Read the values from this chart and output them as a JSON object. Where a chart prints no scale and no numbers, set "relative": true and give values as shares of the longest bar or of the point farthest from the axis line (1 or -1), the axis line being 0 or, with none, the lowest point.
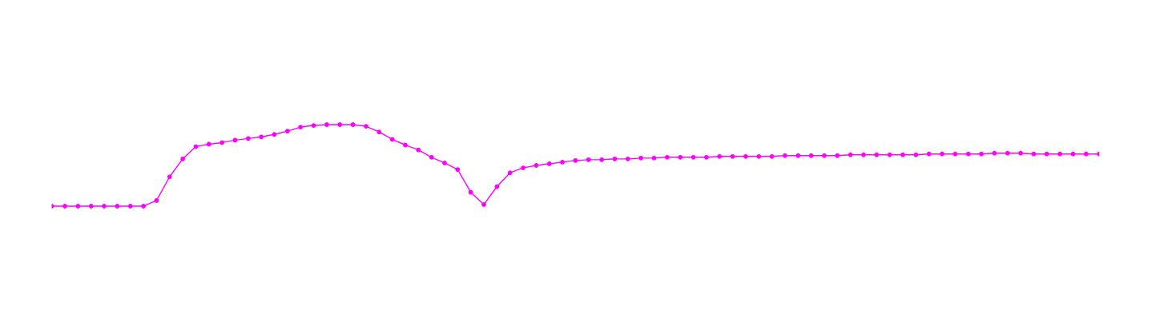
{
  "chart_data": {
    "type": "line",
    "relative": true,
    "marker": "circle",
    "line_style": "solid",
    "categories": [
      null,
      null,
      null,
      null,
      null,
      null,
      null,
      null,
      null,
      null,
      null,
      null,
      null,
      null,
      null,
      null,
      null,
      null,
      null,
      null,
      null,
      null,
      null,
      null,
      null,
      null,
      null,
      null,
      null,
      null,
      null,
      null,
      null,
      null,
      null,
      null,
      null,
      null,
      null,
      null,
      null,
      null,
      null,
      null,
      null,
      null,
      null,
      null,
      null,
      null,
      null,
      null,
      null,
      null,
      null,
      null,
      null,
      null,
      null,
      null,
      null,
      null,
      null,
      null,
      null,
      null,
      null,
      null,
      null,
      null,
      null,
      null,
      null,
      null,
      null,
      null,
      null,
      null,
      null,
      null,
      null
    ],
    "series": [
      {
        "color": "#ff00ff",
        "values": [
          0,
          0,
          0,
          0,
          0,
          0,
          0,
          0,
          0.07,
          0.36,
          0.58,
          0.73,
          0.76,
          0.78,
          0.81,
          0.83,
          0.85,
          0.88,
          0.92,
          0.97,
          0.99,
          1.0,
          1.0,
          1.0,
          0.98,
          0.91,
          0.82,
          0.75,
          0.69,
          0.6,
          0.53,
          0.45,
          0.17,
          0.02,
          0.24,
          0.41,
          0.47,
          0.5,
          0.52,
          0.54,
          0.56,
          0.57,
          0.57,
          0.58,
          0.58,
          0.59,
          0.59,
          0.6,
          0.6,
          0.6,
          0.6,
          0.61,
          0.61,
          0.61,
          0.61,
          0.61,
          0.62,
          0.62,
          0.62,
          0.62,
          0.62,
          0.63,
          0.63,
          0.63,
          0.63,
          0.63,
          0.63,
          0.64,
          0.64,
          0.64,
          0.64,
          0.64,
          0.65,
          0.65,
          0.65,
          0.64,
          0.64,
          0.64,
          0.64,
          0.64,
          0.64
        ]
      }
    ]
  }
}
